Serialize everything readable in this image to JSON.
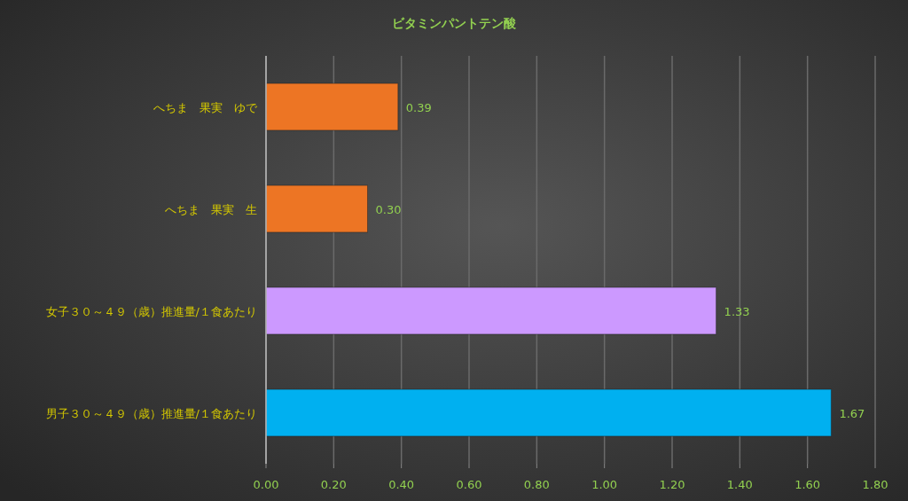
{
  "chart_data": {
    "type": "bar",
    "orientation": "horizontal",
    "title": "ビタミンパントテン酸",
    "categories": [
      "へちま　果実　ゆで",
      "へちま　果実　生",
      "女子３０～４９（歳）推進量/１食あたり",
      "男子３０～４９（歳）推進量/１食あたり"
    ],
    "values": [
      0.39,
      0.3,
      1.33,
      1.67
    ],
    "colors": [
      "#ed7524",
      "#ed7524",
      "#cc99ff",
      "#00b0f0"
    ],
    "xlim": [
      0,
      1.8
    ],
    "xticks": [
      {
        "value": 0,
        "label": "0.00"
      },
      {
        "value": 0.2,
        "label": "0.20"
      },
      {
        "value": 0.4,
        "label": "0.40"
      },
      {
        "value": 0.6,
        "label": "0.60"
      },
      {
        "value": 0.8,
        "label": "0.80"
      },
      {
        "value": 1,
        "label": "1.00"
      },
      {
        "value": 1.2,
        "label": "1.20"
      },
      {
        "value": 1.4,
        "label": "1.40"
      },
      {
        "value": 1.6,
        "label": "1.60"
      },
      {
        "value": 1.8,
        "label": "1.80"
      }
    ],
    "value_labels": [
      "0.39",
      "0.30",
      "1.33",
      "1.67"
    ],
    "grid": "x"
  }
}
